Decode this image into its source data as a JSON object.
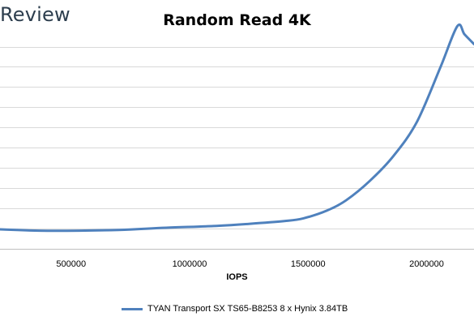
{
  "brand": {
    "text": "Review"
  },
  "chart_data": {
    "type": "line",
    "title": "Random Read 4K",
    "xlabel": "IOPS",
    "ylabel": "",
    "xlim": [
      200000,
      2200000
    ],
    "ylim": [
      0,
      8
    ],
    "x_ticks": [
      500000,
      1000000,
      1500000,
      2000000
    ],
    "x_tick_labels": [
      "500000",
      "1000000",
      "1500000",
      "2000000"
    ],
    "grid": true,
    "legend_placement": "bottom",
    "series": [
      {
        "name": "TYAN Transport SX TS65-B8253 8 x Hynix 3.84TB",
        "color": "#4f81bd",
        "x": [
          200000,
          400000,
          700000,
          900000,
          1100000,
          1250000,
          1400000,
          1480000,
          1580000,
          1660000,
          1760000,
          1860000,
          1960000,
          2060000,
          2130000,
          2160000,
          2200000
        ],
        "y": [
          0.0,
          -0.05,
          -0.02,
          0.06,
          0.12,
          0.2,
          0.3,
          0.4,
          0.68,
          1.05,
          1.75,
          2.65,
          3.9,
          5.9,
          7.35,
          7.05,
          6.7
        ]
      }
    ]
  }
}
